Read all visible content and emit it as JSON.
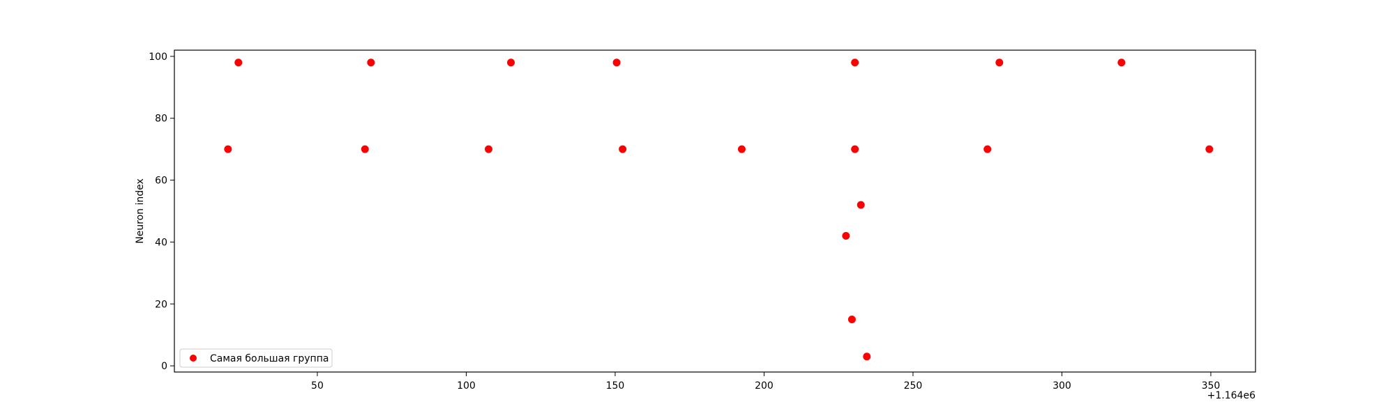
{
  "chart_data": {
    "type": "scatter",
    "ylabel": "Neuron index",
    "xlabel": "",
    "x_offset_label": "+1.164e6",
    "xlim": [
      2,
      365
    ],
    "ylim": [
      -2,
      102
    ],
    "x_ticks": [
      50,
      100,
      150,
      200,
      250,
      300,
      350
    ],
    "y_ticks": [
      0,
      20,
      40,
      60,
      80,
      100
    ],
    "grid": false,
    "legend_position": "lower-left",
    "series": [
      {
        "name": "Самая большая группа",
        "color": "#ff0000",
        "x": [
          20,
          23.5,
          66,
          68,
          107.5,
          115,
          150.5,
          152.5,
          192.5,
          227.5,
          229.5,
          230.5,
          230.5,
          232.5,
          234.5,
          275,
          279,
          320,
          349.5
        ],
        "y": [
          70,
          98,
          70,
          98,
          70,
          98,
          98,
          70,
          70,
          42,
          15,
          98,
          70,
          52,
          3,
          70,
          98,
          98,
          70
        ]
      }
    ]
  }
}
